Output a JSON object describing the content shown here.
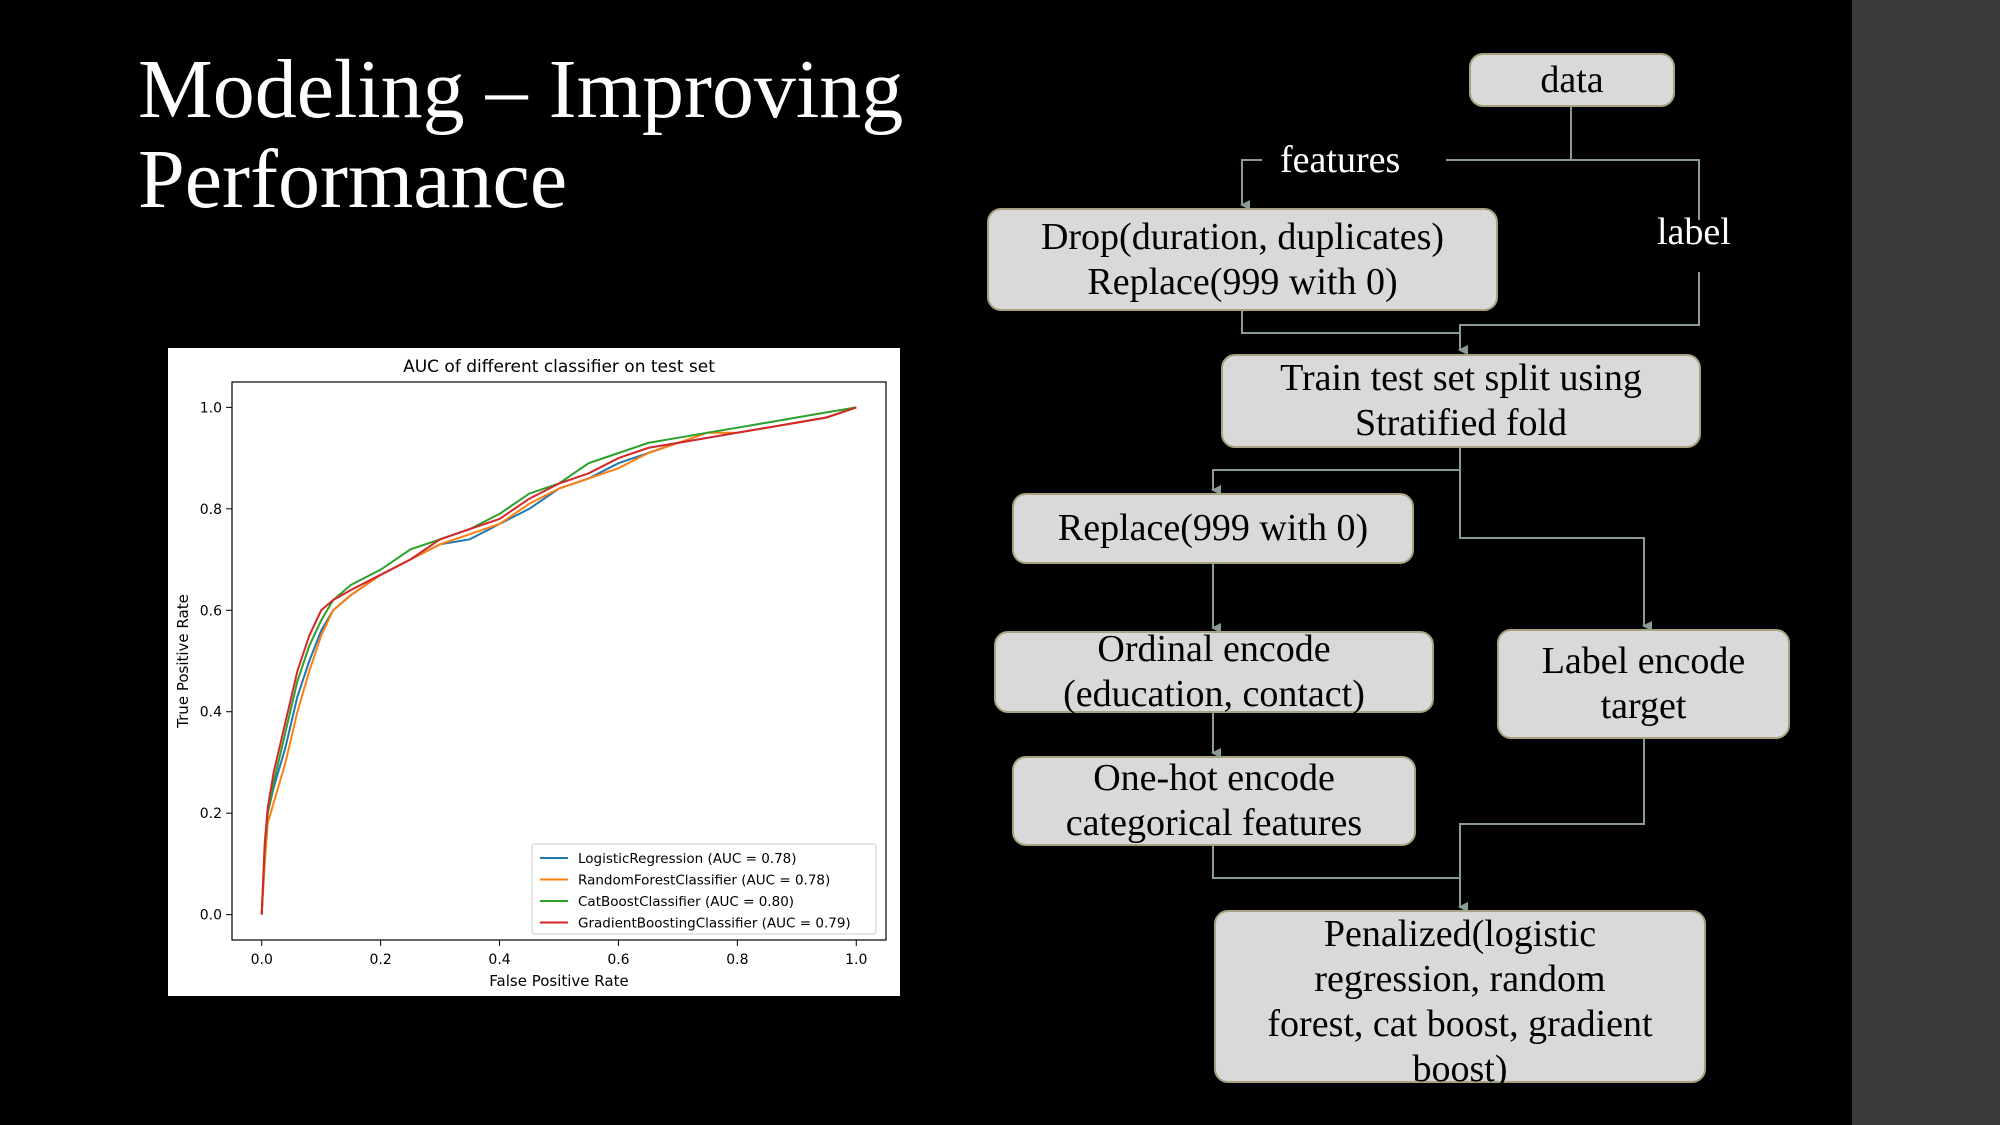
{
  "slide": {
    "title_line1": "Modeling – Improving",
    "title_line2": "Performance"
  },
  "chart_data": {
    "type": "line",
    "title": "AUC of different classifier on test set",
    "xlabel": "False Positive Rate",
    "ylabel": "True Positive Rate",
    "xlim": [
      -0.05,
      1.05
    ],
    "ylim": [
      -0.05,
      1.05
    ],
    "xticks": [
      "0.0",
      "0.2",
      "0.4",
      "0.6",
      "0.8",
      "1.0"
    ],
    "yticks": [
      "0.0",
      "0.2",
      "0.4",
      "0.6",
      "0.8",
      "1.0"
    ],
    "grid": false,
    "legend_position": "lower right",
    "series": [
      {
        "name": "LogisticRegression (AUC = 0.78)",
        "color": "#1f77b4",
        "x": [
          0,
          0.005,
          0.01,
          0.02,
          0.04,
          0.06,
          0.08,
          0.1,
          0.12,
          0.15,
          0.2,
          0.25,
          0.3,
          0.35,
          0.4,
          0.45,
          0.5,
          0.55,
          0.6,
          0.65,
          0.7,
          0.75,
          0.8,
          0.85,
          0.9,
          0.95,
          1.0
        ],
        "y": [
          0,
          0.12,
          0.2,
          0.25,
          0.33,
          0.43,
          0.5,
          0.56,
          0.6,
          0.63,
          0.67,
          0.7,
          0.73,
          0.74,
          0.77,
          0.8,
          0.84,
          0.86,
          0.89,
          0.91,
          0.93,
          0.94,
          0.95,
          0.96,
          0.97,
          0.98,
          1.0
        ]
      },
      {
        "name": "RandomForestClassifier (AUC = 0.78)",
        "color": "#ff7f0e",
        "x": [
          0,
          0.005,
          0.01,
          0.02,
          0.04,
          0.06,
          0.08,
          0.1,
          0.12,
          0.15,
          0.2,
          0.25,
          0.3,
          0.35,
          0.4,
          0.45,
          0.5,
          0.55,
          0.6,
          0.65,
          0.7,
          0.75,
          0.8,
          0.85,
          0.9,
          0.95,
          1.0
        ],
        "y": [
          0,
          0.1,
          0.18,
          0.22,
          0.3,
          0.4,
          0.48,
          0.55,
          0.6,
          0.63,
          0.67,
          0.7,
          0.73,
          0.75,
          0.77,
          0.81,
          0.84,
          0.86,
          0.88,
          0.91,
          0.93,
          0.95,
          0.95,
          0.96,
          0.97,
          0.98,
          1.0
        ]
      },
      {
        "name": "CatBoostClassifier (AUC = 0.80)",
        "color": "#2ca02c",
        "x": [
          0,
          0.005,
          0.01,
          0.02,
          0.04,
          0.06,
          0.08,
          0.1,
          0.12,
          0.15,
          0.2,
          0.25,
          0.3,
          0.35,
          0.4,
          0.45,
          0.5,
          0.55,
          0.6,
          0.65,
          0.7,
          0.75,
          0.8,
          0.85,
          0.9,
          0.95,
          1.0
        ],
        "y": [
          0,
          0.13,
          0.2,
          0.26,
          0.36,
          0.46,
          0.53,
          0.58,
          0.62,
          0.65,
          0.68,
          0.72,
          0.74,
          0.76,
          0.79,
          0.83,
          0.85,
          0.89,
          0.91,
          0.93,
          0.94,
          0.95,
          0.96,
          0.97,
          0.98,
          0.99,
          1.0
        ]
      },
      {
        "name": "GradientBoostingClassifier (AUC = 0.79)",
        "color": "#d62728",
        "x": [
          0,
          0.005,
          0.01,
          0.02,
          0.04,
          0.06,
          0.08,
          0.1,
          0.12,
          0.15,
          0.2,
          0.25,
          0.3,
          0.35,
          0.4,
          0.45,
          0.5,
          0.55,
          0.6,
          0.65,
          0.7,
          0.75,
          0.8,
          0.85,
          0.9,
          0.95,
          1.0
        ],
        "y": [
          0,
          0.14,
          0.21,
          0.28,
          0.38,
          0.48,
          0.55,
          0.6,
          0.62,
          0.64,
          0.67,
          0.7,
          0.74,
          0.76,
          0.78,
          0.82,
          0.85,
          0.87,
          0.9,
          0.92,
          0.93,
          0.94,
          0.95,
          0.96,
          0.97,
          0.98,
          1.0
        ]
      }
    ]
  },
  "flowchart": {
    "data": "data",
    "features": "features",
    "label": "label",
    "drop_line1": "Drop(duration, duplicates)",
    "drop_line2": "Replace(999 with 0)",
    "split_line1": "Train test set split using",
    "split_line2": "Stratified fold",
    "replace": "Replace(999 with 0)",
    "ordinal_line1": "Ordinal encode",
    "ordinal_line2": "(education, contact)",
    "label_encode_line1": "Label encode",
    "label_encode_line2": "target",
    "onehot_line1": "One-hot encode",
    "onehot_line2": "categorical features",
    "penalized_line1": "Penalized(logistic",
    "penalized_line2": "regression, random",
    "penalized_line3": "forest, cat boost, gradient",
    "penalized_line4": "boost)"
  }
}
